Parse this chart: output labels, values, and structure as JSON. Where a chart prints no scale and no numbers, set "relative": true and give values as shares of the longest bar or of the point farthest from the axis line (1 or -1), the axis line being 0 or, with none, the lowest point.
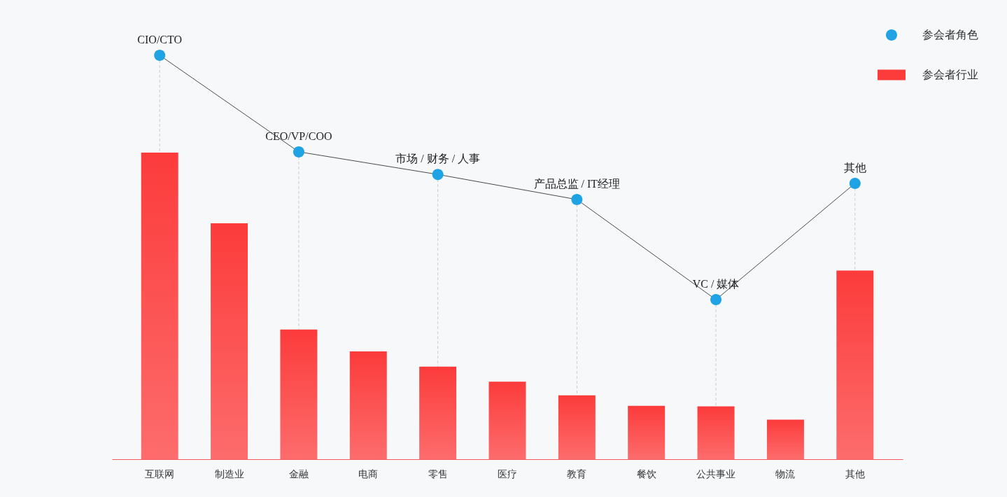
{
  "chart_data": {
    "type": "bar",
    "relative": true,
    "categories": [
      "互联网",
      "制造业",
      "金融",
      "电商",
      "零售",
      "医疗",
      "教育",
      "餐饮",
      "公共事业",
      "物流",
      "其他"
    ],
    "series": [
      {
        "name": "参会者角色",
        "type": "line",
        "color": "#1fa3e4",
        "x": [
          "互联网",
          "金融",
          "零售",
          "教育",
          "公共事业",
          "其他"
        ],
        "values": [
          1,
          0.761,
          0.705,
          0.643,
          0.395,
          0.683
        ]
      },
      {
        "name": "参会者行业",
        "color": "#fc3b3b",
        "values": [
          0.759,
          0.584,
          0.321,
          0.267,
          0.229,
          0.192,
          0.158,
          0.132,
          0.131,
          0.098,
          0.467
        ]
      }
    ],
    "annotations": [
      {
        "text": "CIO/CTO",
        "x": "互联网",
        "y": 1
      },
      {
        "text": "CEO/VP/COO",
        "x": "金融",
        "y": 0.761
      },
      {
        "text": "市场 / 财务 / 人事",
        "x": "零售",
        "y": 0.705
      },
      {
        "text": "产品总监 / IT经理",
        "x": "教育",
        "y": 0.643
      },
      {
        "text": "VC / 媒体",
        "x": "公共事业",
        "y": 0.395
      },
      {
        "text": "其他",
        "x": "其他",
        "y": 0.683
      }
    ],
    "marker": "circle",
    "legend": "top right"
  }
}
